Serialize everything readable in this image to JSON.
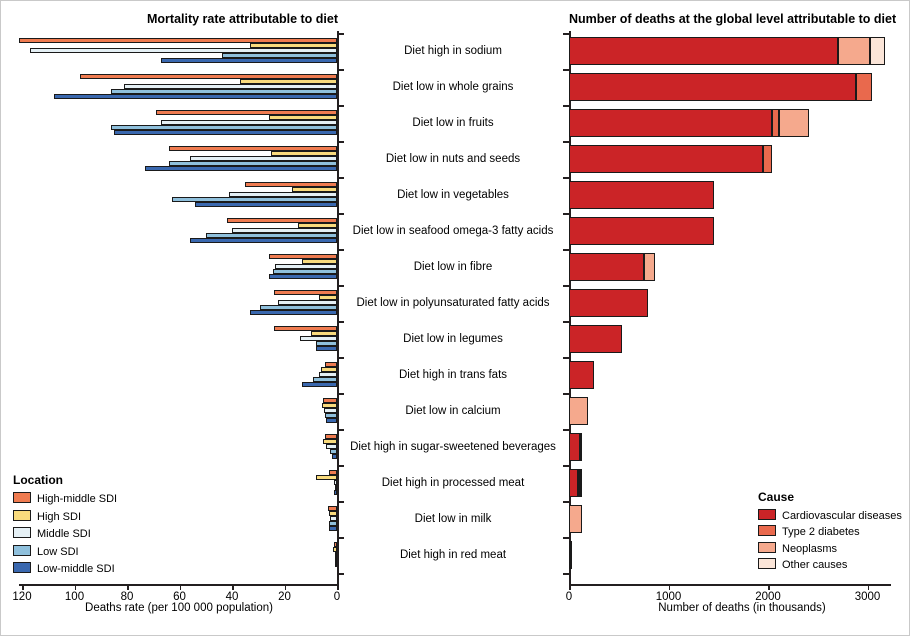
{
  "chart_data": [
    {
      "type": "bar",
      "orientation": "horizontal",
      "stacked": false,
      "axis_reversed": true,
      "grid": false,
      "title": "Mortality rate attributable to diet",
      "xlabel": "Deaths rate (per 100 000 population)",
      "xlim": [
        0,
        125
      ],
      "x_ticks": [
        120,
        100,
        80,
        60,
        40,
        20,
        0
      ],
      "legend": {
        "title": "Location",
        "position": "bottom-left"
      },
      "categories": [
        "Diet high in sodium",
        "Diet low in whole grains",
        "Diet low in fruits",
        "Diet low in nuts and seeds",
        "Diet low in vegetables",
        "Diet low in seafood omega-3 fatty acids",
        "Diet low in fibre",
        "Diet low in polyunsaturated fatty acids",
        "Diet low in legumes",
        "Diet high in trans fats",
        "Diet low in calcium",
        "Diet high in sugar-sweetened beverages",
        "Diet high in processed meat",
        "Diet low in milk",
        "Diet high in red meat"
      ],
      "series": [
        {
          "name": "High-middle SDI",
          "color": "#EF7B50",
          "values": [
            121,
            98,
            69,
            64,
            35,
            42,
            26,
            24,
            24,
            4.5,
            5.3,
            4.7,
            3,
            3.4,
            1.3
          ]
        },
        {
          "name": "High SDI",
          "color": "#F9DB7D",
          "values": [
            33,
            37,
            26,
            25,
            17,
            15,
            13.5,
            7,
            10,
            6,
            5.6,
            5.5,
            8,
            3.2,
            1.5
          ]
        },
        {
          "name": "Middle SDI",
          "color": "#E5F0F5",
          "values": [
            117,
            81,
            67,
            56,
            41,
            40,
            23.5,
            22.5,
            14,
            7,
            5,
            4.1,
            1.3,
            2.8,
            0.9
          ]
        },
        {
          "name": "Low SDI",
          "color": "#8FC0DC",
          "values": [
            44,
            86,
            86,
            64,
            63,
            50,
            24.5,
            29.5,
            8,
            9,
            4.7,
            2.6,
            0.9,
            3,
            0.6
          ]
        },
        {
          "name": "Low-middle SDI",
          "color": "#3A68AF",
          "values": [
            67,
            108,
            85,
            73,
            54,
            56,
            26,
            33,
            8,
            13.5,
            4.3,
            1.9,
            1.1,
            2.9,
            0.7
          ]
        }
      ]
    },
    {
      "type": "bar",
      "orientation": "horizontal",
      "stacked": true,
      "grid": false,
      "title": "Number of deaths at the global level attributable to diet",
      "xlabel": "Number of deaths (in thousands)",
      "xlim": [
        0,
        3250
      ],
      "x_ticks": [
        0,
        1000,
        2000,
        3000
      ],
      "legend": {
        "title": "Cause",
        "position": "bottom-right"
      },
      "categories": [
        "Diet high in sodium",
        "Diet low in whole grains",
        "Diet low in fruits",
        "Diet low in nuts and seeds",
        "Diet low in vegetables",
        "Diet low in seafood omega-3 fatty acids",
        "Diet low in fibre",
        "Diet low in polyunsaturated fatty acids",
        "Diet low in legumes",
        "Diet high in trans fats",
        "Diet low in calcium",
        "Diet high in sugar-sweetened beverages",
        "Diet high in processed meat",
        "Diet low in milk",
        "Diet high in red meat"
      ],
      "series": [
        {
          "name": "Cardiovascular diseases",
          "color": "#CB2427",
          "values": [
            2700,
            2880,
            2045,
            1945,
            1460,
            1455,
            750,
            795,
            530,
            250,
            0,
            115,
            90,
            0,
            10
          ]
        },
        {
          "name": "Type 2 diabetes",
          "color": "#E9694D",
          "values": [
            0,
            165,
            65,
            100,
            0,
            0,
            0,
            0,
            0,
            0,
            0,
            20,
            25,
            0,
            5
          ]
        },
        {
          "name": "Neoplasms",
          "color": "#F5A98D",
          "values": [
            330,
            0,
            300,
            0,
            0,
            0,
            115,
            0,
            0,
            0,
            195,
            0,
            20,
            130,
            5
          ]
        },
        {
          "name": "Other causes",
          "color": "#FBE5D8",
          "values": [
            150,
            0,
            0,
            0,
            0,
            0,
            0,
            0,
            0,
            0,
            0,
            0,
            0,
            0,
            0
          ]
        }
      ]
    }
  ]
}
